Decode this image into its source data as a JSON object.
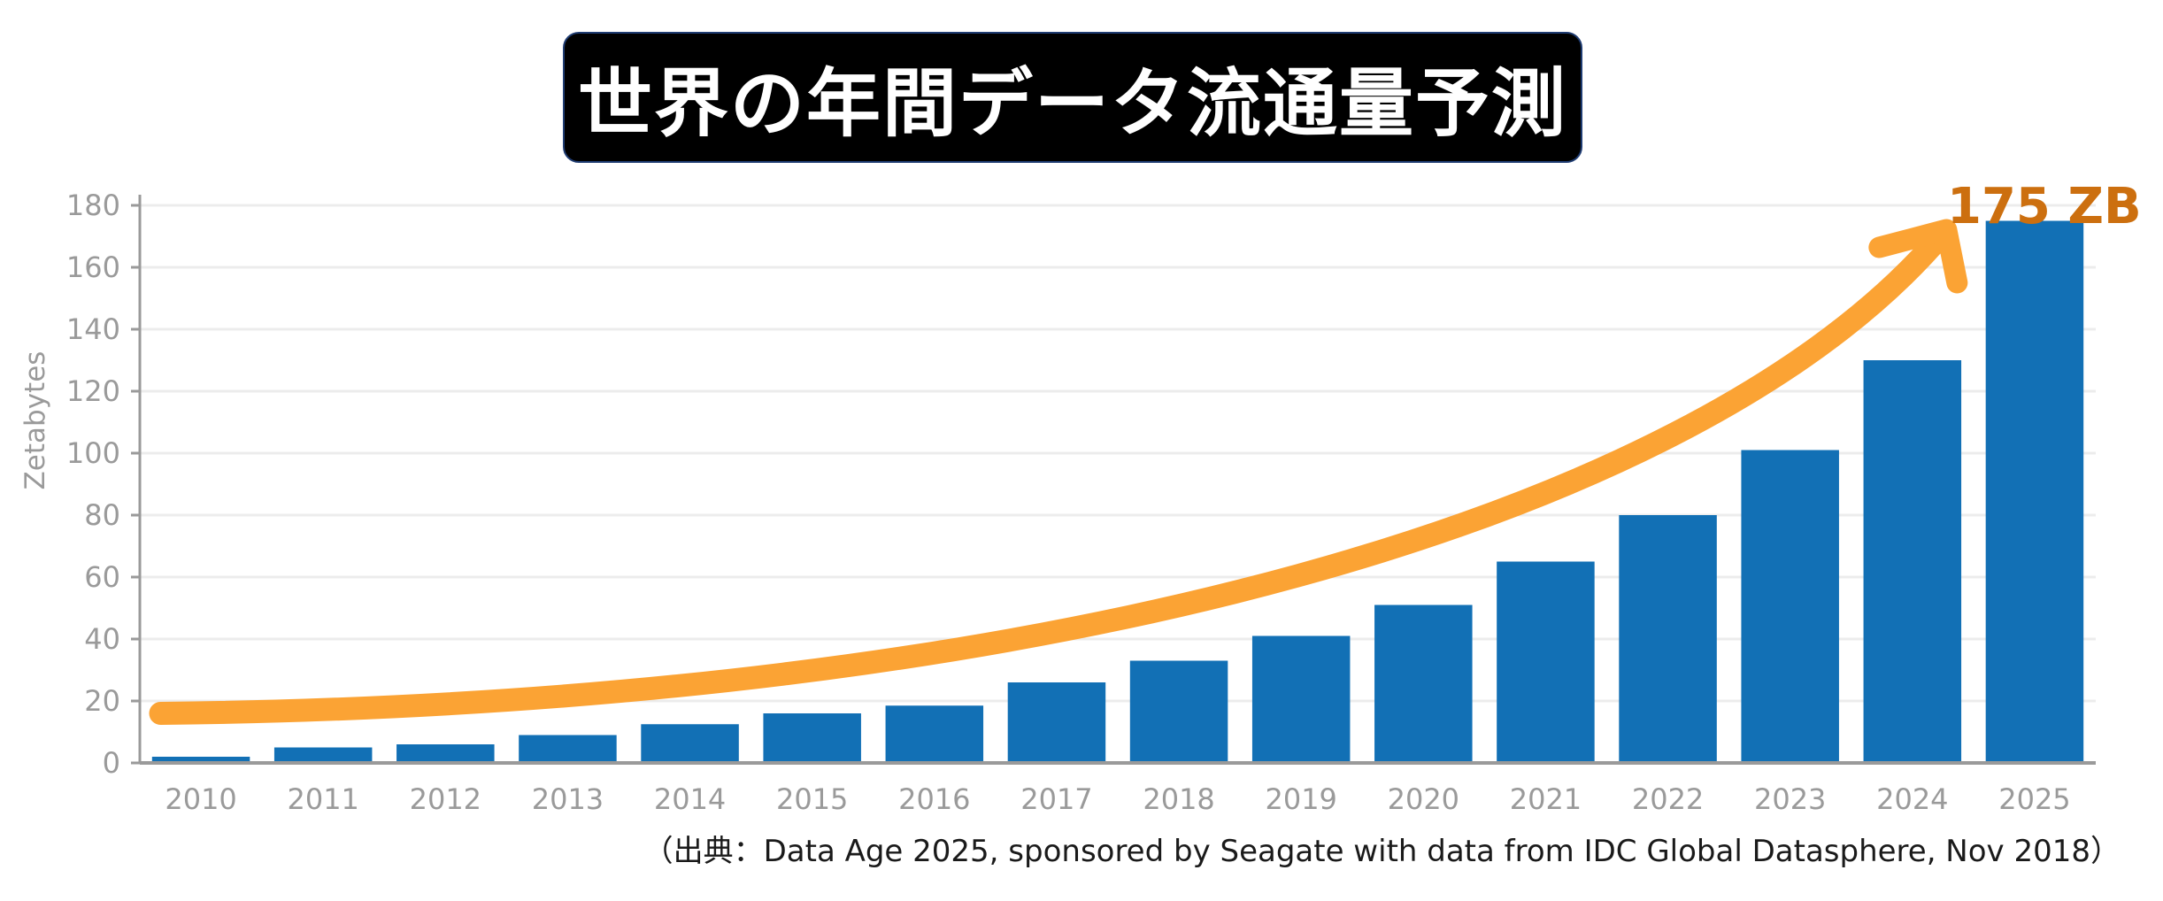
{
  "chart_data": {
    "type": "bar",
    "title": "世界の年間データ流通量予測",
    "xlabel": "",
    "ylabel": "Zetabytes",
    "categories": [
      "2010",
      "2011",
      "2012",
      "2013",
      "2014",
      "2015",
      "2016",
      "2017",
      "2018",
      "2019",
      "2020",
      "2021",
      "2022",
      "2023",
      "2024",
      "2025"
    ],
    "values": [
      2,
      5,
      6,
      9,
      12.5,
      16,
      18.5,
      26,
      33,
      41,
      51,
      65,
      80,
      101,
      130,
      175
    ],
    "ylim": [
      0,
      180
    ],
    "yticks": [
      0,
      20,
      40,
      60,
      80,
      100,
      120,
      140,
      160,
      180
    ],
    "grid": true,
    "annotation": "175 ZB",
    "bar_color": "#1270b5",
    "arrow_color": "#fba334",
    "annotation_color": "#cc6f0f"
  },
  "source_note": "（出典：Data Age 2025, sponsored by Seagate with data from IDC Global Datasphere, Nov 2018）"
}
